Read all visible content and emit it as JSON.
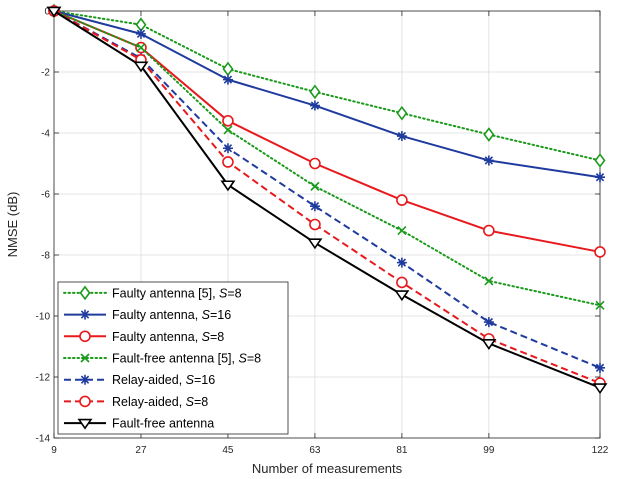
{
  "chart_data": {
    "type": "line",
    "title": "",
    "xlabel": "Number of measurements",
    "ylabel": "NMSE (dB)",
    "xlim": [
      9,
      122
    ],
    "ylim": [
      -14,
      0
    ],
    "xticks": [
      9,
      27,
      45,
      63,
      81,
      99,
      122
    ],
    "yticks": [
      0,
      -2,
      -4,
      -6,
      -8,
      -10,
      -12,
      -14
    ],
    "grid": true,
    "legend_position": "bottom-left",
    "x": [
      9,
      27,
      45,
      63,
      81,
      99,
      122
    ],
    "series": [
      {
        "name": "Faulty antenna [5], S=8",
        "legend_parts": [
          "Faulty antenna [5], ",
          "S",
          "=8"
        ],
        "color": "#1a9a1a",
        "dash": "dotted",
        "marker": "diamond",
        "values": [
          0,
          -0.45,
          -1.9,
          -2.65,
          -3.35,
          -4.05,
          -4.9
        ]
      },
      {
        "name": "Faulty antenna, S=16",
        "legend_parts": [
          "Faulty antenna, ",
          "S",
          "=16"
        ],
        "color": "#1f3b9e",
        "dash": "solid",
        "marker": "asterisk",
        "values": [
          0,
          -0.75,
          -2.25,
          -3.1,
          -4.1,
          -4.9,
          -5.45
        ]
      },
      {
        "name": "Faulty antenna, S=8",
        "legend_parts": [
          "Faulty antenna, ",
          "S",
          "=8"
        ],
        "color": "#e8191c",
        "dash": "solid",
        "marker": "circle",
        "values": [
          0,
          -1.2,
          -3.6,
          -5.0,
          -6.2,
          -7.2,
          -7.9
        ]
      },
      {
        "name": "Fault-free antenna [5], S=8",
        "legend_parts": [
          "Fault-free antenna [5], ",
          "S",
          "=8"
        ],
        "color": "#1a9a1a",
        "dash": "dotted",
        "marker": "cross",
        "values": [
          0,
          -1.2,
          -3.9,
          -5.75,
          -7.2,
          -8.85,
          -9.65
        ]
      },
      {
        "name": "Relay-aided, S=16",
        "legend_parts": [
          "Relay-aided, ",
          "S",
          "=16"
        ],
        "color": "#1f3b9e",
        "dash": "dashed",
        "marker": "asterisk",
        "values": [
          0,
          -1.55,
          -4.5,
          -6.4,
          -8.25,
          -10.2,
          -11.7
        ]
      },
      {
        "name": "Relay-aided, S=8",
        "legend_parts": [
          "Relay-aided, ",
          "S",
          "=8"
        ],
        "color": "#e8191c",
        "dash": "dashed",
        "marker": "circle",
        "values": [
          0,
          -1.6,
          -4.95,
          -7.0,
          -8.9,
          -10.75,
          -12.2
        ]
      },
      {
        "name": "Fault-free antenna",
        "legend_parts": [
          "Fault-free antenna",
          "",
          ""
        ],
        "color": "#000000",
        "dash": "solid",
        "marker": "triangle-down",
        "values": [
          0,
          -1.8,
          -5.7,
          -7.6,
          -9.3,
          -10.9,
          -12.35
        ]
      }
    ]
  }
}
